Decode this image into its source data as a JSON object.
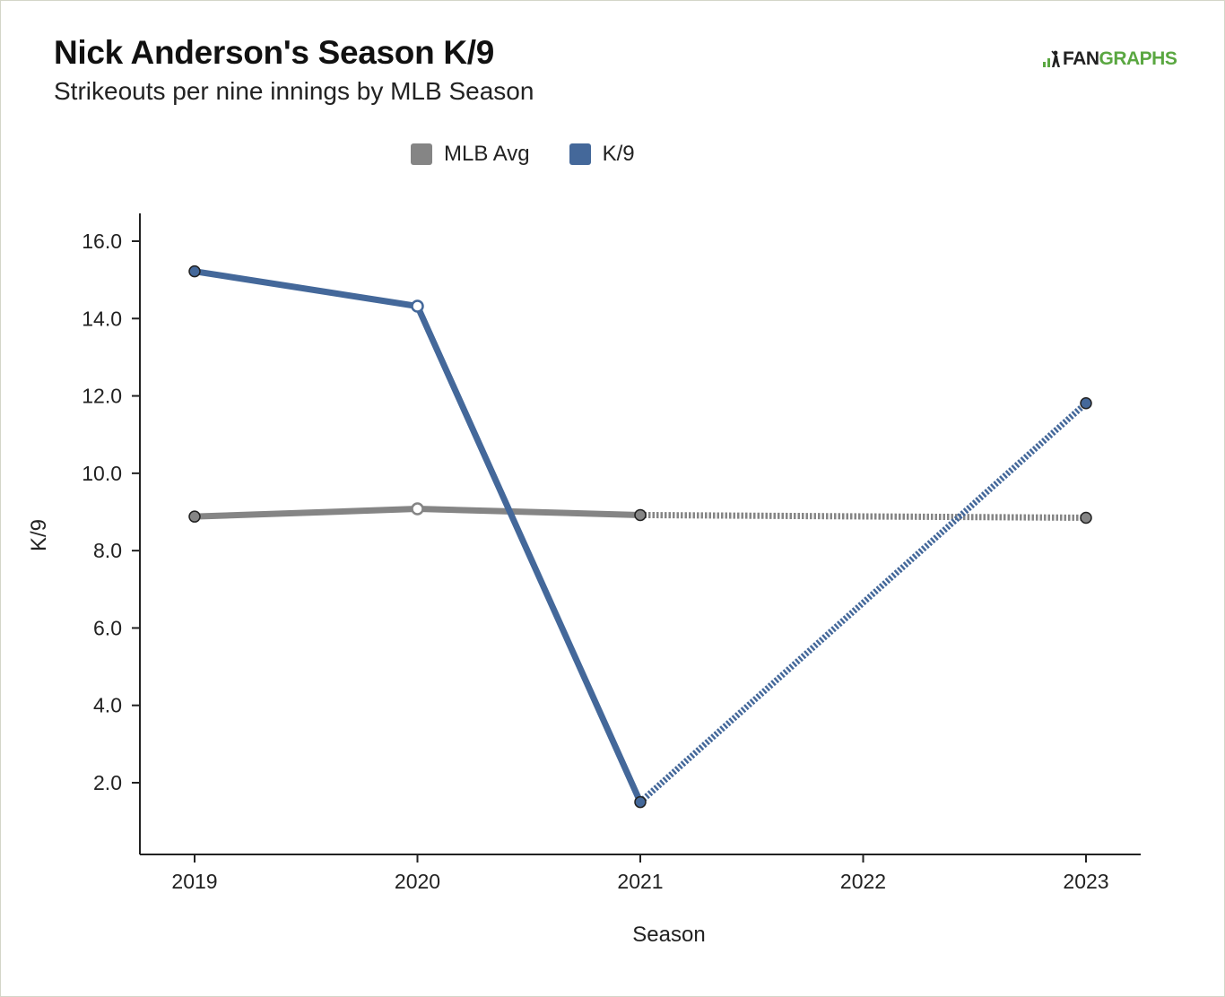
{
  "header": {
    "title": "Nick Anderson's Season K/9",
    "subtitle": "Strikeouts per nine innings by MLB Season"
  },
  "logo": {
    "text_fan": "FAN",
    "text_graphs": "GRAPHS"
  },
  "colors": {
    "mlb_avg": "#858585",
    "k9": "#44689a",
    "axis": "#222222",
    "logo_green": "#5aa741"
  },
  "legend": {
    "position": "top-center",
    "items": [
      {
        "label": "MLB Avg",
        "color": "#858585"
      },
      {
        "label": "K/9",
        "color": "#44689a"
      }
    ]
  },
  "chart_data": {
    "type": "line",
    "title": "Nick Anderson's Season K/9",
    "subtitle": "Strikeouts per nine innings by MLB Season",
    "xlabel": "Season",
    "ylabel": "K/9",
    "x": [
      2019,
      2020,
      2021,
      2022,
      2023
    ],
    "x_tick_labels": [
      "2019",
      "2020",
      "2021",
      "2022",
      "2023"
    ],
    "y_tick_labels": [
      "2.0",
      "4.0",
      "6.0",
      "8.0",
      "10.0",
      "12.0",
      "14.0",
      "16.0"
    ],
    "y_ticks": [
      2,
      4,
      6,
      8,
      10,
      12,
      14,
      16
    ],
    "ylim": [
      0,
      16.7
    ],
    "grid": false,
    "series": [
      {
        "name": "MLB Avg",
        "color": "#858585",
        "points": [
          {
            "x": 2019,
            "y": 8.88
          },
          {
            "x": 2020,
            "y": 9.08
          },
          {
            "x": 2021,
            "y": 8.92
          },
          {
            "x": 2023,
            "y": 8.85
          }
        ],
        "hollow_points": [
          2020
        ],
        "dotted_segments": [
          [
            2021,
            2023
          ]
        ]
      },
      {
        "name": "K/9",
        "color": "#44689a",
        "points": [
          {
            "x": 2019,
            "y": 15.22
          },
          {
            "x": 2020,
            "y": 14.32
          },
          {
            "x": 2021,
            "y": 1.5
          },
          {
            "x": 2023,
            "y": 11.81
          }
        ],
        "hollow_points": [
          2020
        ],
        "dotted_segments": [
          [
            2021,
            2023
          ]
        ]
      }
    ]
  }
}
